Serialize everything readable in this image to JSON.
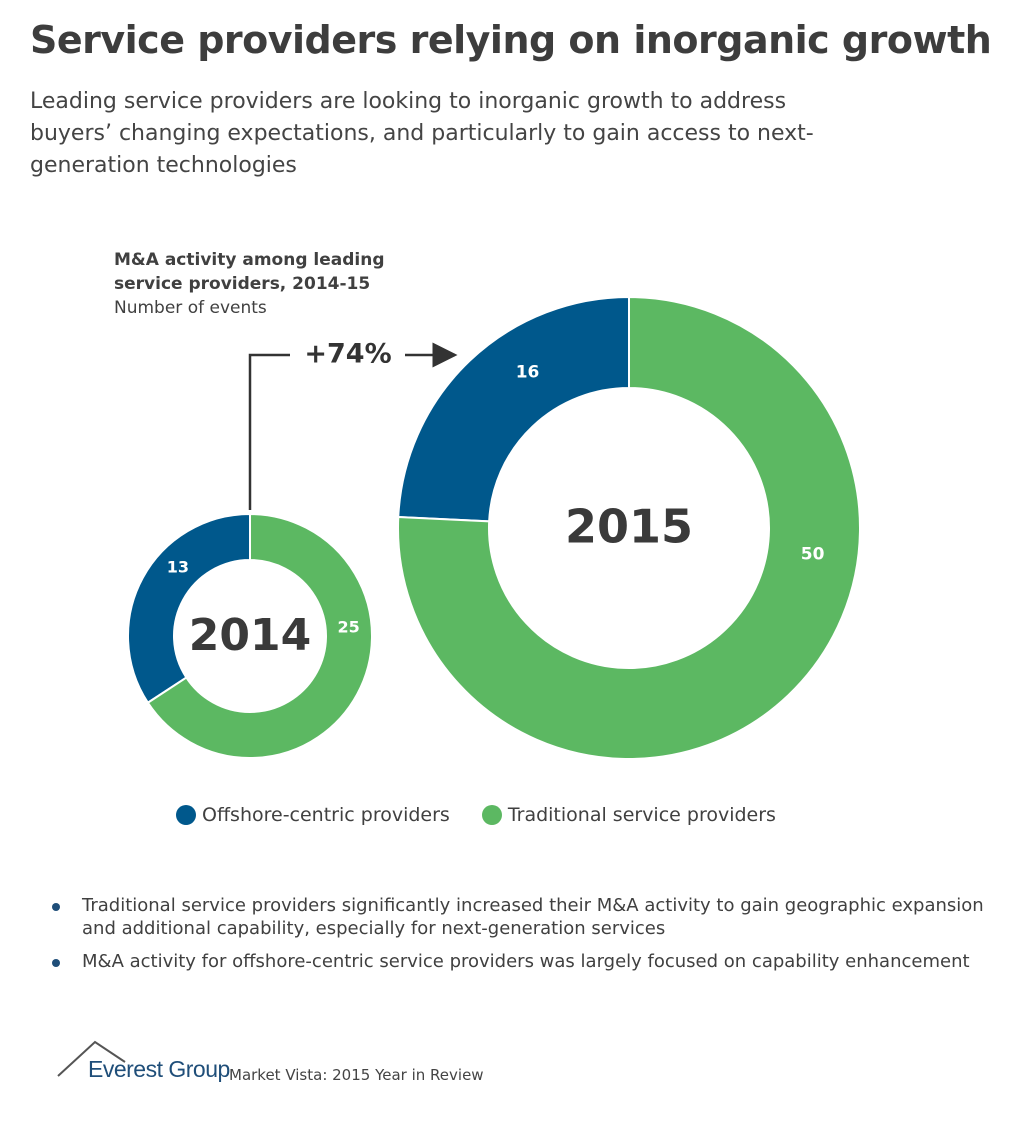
{
  "title": "Service providers relying on inorganic growth",
  "subtitle": "Leading service providers are looking to inorganic growth to address buyers’ changing expectations, and particularly to gain access to next-generation technologies",
  "chart_heading": "M&A activity among leading service providers, 2014-15",
  "chart_units": "Number of events",
  "growth_label": "+74%",
  "chart_data": [
    {
      "type": "donut",
      "center_label": "2014",
      "categories": [
        "Offshore-centric providers",
        "Traditional service providers"
      ],
      "values": [
        13,
        25
      ],
      "colors": [
        "#00588c",
        "#5cb862"
      ]
    },
    {
      "type": "donut",
      "center_label": "2015",
      "categories": [
        "Offshore-centric providers",
        "Traditional service providers"
      ],
      "values": [
        16,
        50
      ],
      "colors": [
        "#00588c",
        "#5cb862"
      ]
    }
  ],
  "bullets": [
    "Traditional service providers significantly increased their M&A activity to gain geographic expansion and additional capability, especially for next-generation services",
    "M&A activity for offshore-centric service providers was largely focused on capability enhancement"
  ],
  "footer": {
    "brand": "Everest Group",
    "source": "Market Vista: 2015 Year in Review"
  }
}
